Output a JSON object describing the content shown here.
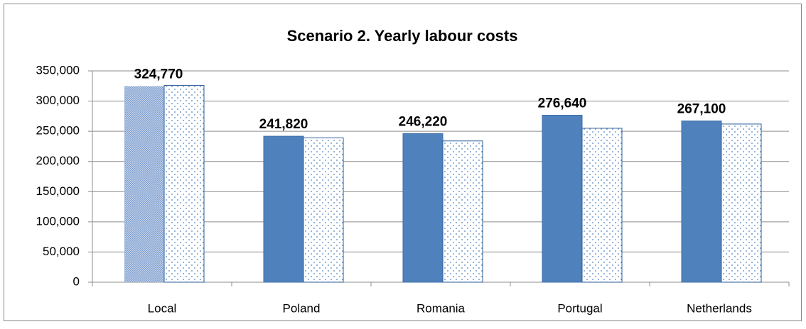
{
  "chart_data": {
    "type": "bar",
    "title": "Scenario 2. Yearly labour costs",
    "categories": [
      "Local",
      "Poland",
      "Romania",
      "Portugal",
      "Netherlands"
    ],
    "series": [
      {
        "color": "#4f81bd",
        "patterns": [
          "check",
          null,
          null,
          null,
          null
        ],
        "values": [
          324770,
          241820,
          246220,
          276640,
          267100
        ],
        "value_labels": [
          "324,770",
          "241,820",
          "246,220",
          "276,640",
          "267,100"
        ]
      },
      {
        "color": "#4f81bd",
        "pattern": "dots",
        "values": [
          326000,
          239000,
          234000,
          255000,
          262000
        ]
      }
    ],
    "ylim": [
      0,
      350000
    ],
    "yticks": [
      0,
      {
        "value": 50000,
        "label": "50,000"
      },
      {
        "value": 100000,
        "label": "100,000"
      },
      {
        "value": 150000,
        "label": "150,000"
      },
      {
        "value": 200000,
        "label": "200,000"
      },
      {
        "value": 250000,
        "label": "250,000"
      },
      {
        "value": 300000,
        "label": "300,000"
      },
      {
        "value": 350000,
        "label": "350,000"
      }
    ],
    "grid": true
  }
}
